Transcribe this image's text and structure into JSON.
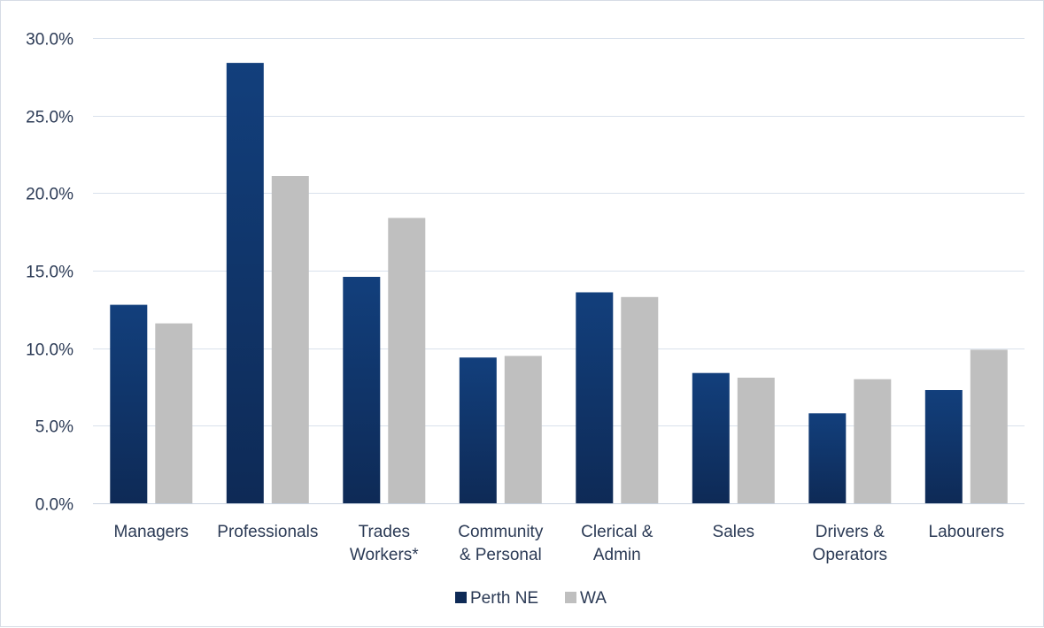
{
  "chart_data": {
    "type": "bar",
    "title": "",
    "xlabel": "",
    "ylabel": "",
    "ylim": [
      0,
      30
    ],
    "ytick_values": [
      0,
      5,
      10,
      15,
      20,
      25,
      30
    ],
    "ytick_labels": [
      "0.0%",
      "5.0%",
      "10.0%",
      "15.0%",
      "20.0%",
      "25.0%",
      "30.0%"
    ],
    "grid": true,
    "legend_placement": "bottom-center",
    "categories": [
      [
        "Managers"
      ],
      [
        "Professionals"
      ],
      [
        "Trades",
        "Workers*"
      ],
      [
        "Community",
        "& Personal"
      ],
      [
        "Clerical &",
        "Admin"
      ],
      [
        "Sales"
      ],
      [
        "Drivers &",
        "Operators"
      ],
      [
        "Labourers"
      ]
    ],
    "series": [
      {
        "name": "Perth NE",
        "color": "#123f7c",
        "color_dark": "#0e2a56",
        "values": [
          12.8,
          28.4,
          14.6,
          9.4,
          13.6,
          8.4,
          5.8,
          7.3
        ]
      },
      {
        "name": "WA",
        "color": "#bfbfbf",
        "values": [
          11.6,
          21.1,
          18.4,
          9.5,
          13.3,
          8.1,
          8.0,
          9.9
        ]
      }
    ]
  }
}
